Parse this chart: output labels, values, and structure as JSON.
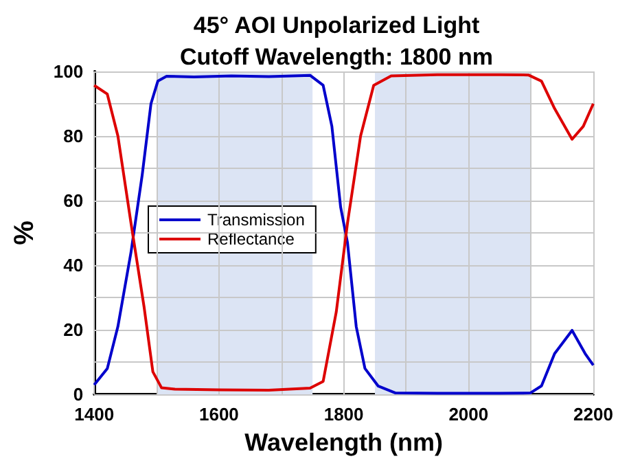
{
  "chart_data": {
    "type": "line",
    "title": "45° AOI Unpolarized Light\nCutoff Wavelength: 1800 nm",
    "xlabel": "Wavelength (nm)",
    "ylabel": "%",
    "xlim": [
      1400,
      2200
    ],
    "xticks": [
      1400,
      {
        "value": 1500,
        "label": null
      },
      1600,
      {
        "value": 1700,
        "label": null
      },
      1800,
      {
        "value": 1900,
        "label": null
      },
      2000,
      {
        "value": 2100,
        "label": null
      },
      2200
    ],
    "ylim": [
      0,
      100
    ],
    "yticks": [
      0,
      {
        "value": 10,
        "label": null
      },
      20,
      {
        "value": 30,
        "label": null
      },
      40,
      {
        "value": 50,
        "label": null
      },
      60,
      {
        "value": 70,
        "label": null
      },
      80,
      {
        "value": 90,
        "label": null
      },
      100
    ],
    "grid": true,
    "legend": "left",
    "marker": "none",
    "line_style": "solid",
    "bands": [
      {
        "axis": "x",
        "from": 1500,
        "to": 1750,
        "color": "#dce4f4"
      },
      {
        "axis": "x",
        "from": 1850,
        "to": 2100,
        "color": "#dce4f4"
      }
    ],
    "series": [
      {
        "name": "Transmission",
        "color": "#0000cc",
        "x": [
          1400,
          1421,
          1438,
          1459,
          1477,
          1491,
          1502,
          1516,
          1560,
          1620,
          1680,
          1746,
          1767,
          1781,
          1795,
          1806,
          1820,
          1834,
          1855,
          1883,
          1950,
          2050,
          2099,
          2117,
          2138,
          2166,
          2187,
          2200
        ],
        "values": [
          2.9,
          8,
          21,
          44,
          68,
          90,
          97,
          98.5,
          98.3,
          98.6,
          98.4,
          98.8,
          95.7,
          83,
          58,
          47,
          21,
          8,
          2.6,
          0.4,
          0.3,
          0.3,
          0.4,
          2.6,
          12.6,
          19.8,
          12.6,
          9
        ]
      },
      {
        "name": "Reflectance",
        "color": "#dd0000",
        "x": [
          1400,
          1421,
          1438,
          1459,
          1480,
          1494,
          1508,
          1529,
          1600,
          1680,
          1746,
          1767,
          1788,
          1806,
          1827,
          1848,
          1876,
          1950,
          2050,
          2096,
          2117,
          2138,
          2166,
          2184,
          2200
        ],
        "values": [
          95.7,
          93,
          80,
          53,
          27,
          7,
          2,
          1.6,
          1.4,
          1.3,
          1.9,
          4,
          25.5,
          53,
          80,
          95.7,
          98.6,
          99,
          99,
          98.9,
          97,
          88.5,
          79,
          83,
          90
        ]
      }
    ]
  }
}
